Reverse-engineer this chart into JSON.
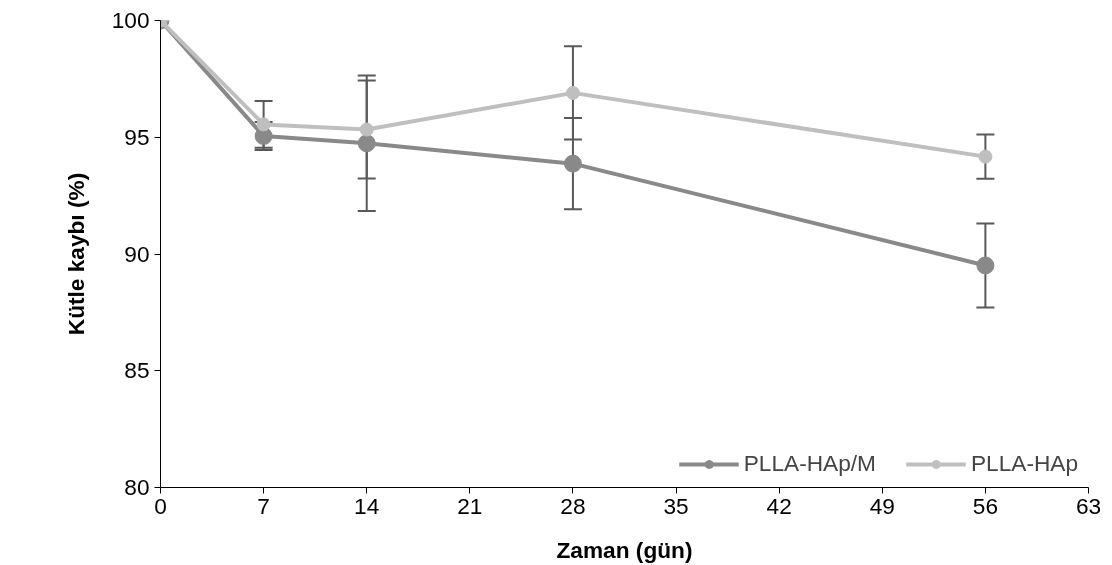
{
  "chart_data": {
    "type": "line",
    "xlabel": "Zaman (gün)",
    "ylabel": "Kütle kaybı (%)",
    "x": [
      0,
      7,
      14,
      28,
      56
    ],
    "series": [
      {
        "name": "PLLA-HAp/M",
        "color": "#898989",
        "values": [
          100,
          95.05,
          94.74,
          93.87,
          89.51
        ],
        "errors": [
          null,
          0.6,
          2.9,
          1.95,
          1.8
        ]
      },
      {
        "name": "PLLA-HAp",
        "color": "#bfbfbf",
        "values": [
          100,
          95.55,
          95.33,
          96.9,
          94.17
        ],
        "errors": [
          null,
          1.0,
          2.1,
          2.0,
          0.95
        ]
      }
    ],
    "xlim": [
      0,
      63
    ],
    "xticks": [
      0,
      7,
      14,
      21,
      28,
      35,
      42,
      49,
      56,
      63
    ],
    "ylim": [
      80,
      100
    ],
    "yticks": [
      80,
      85,
      90,
      95,
      100
    ],
    "grid": false,
    "legend": "bottom right",
    "marker": "circle",
    "line_style": "solid"
  }
}
